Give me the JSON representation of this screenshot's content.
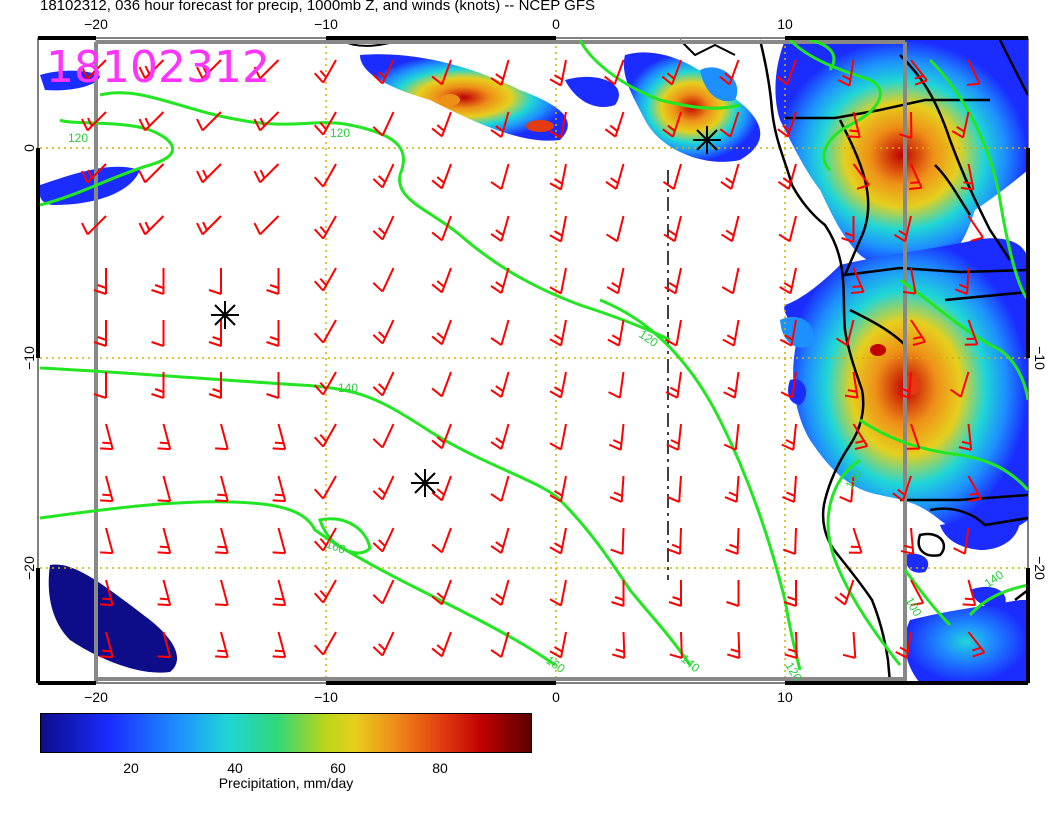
{
  "title": "18102312, 036 hour forecast for precip, 1000mb Z, and winds (knots) -- NCEP GFS",
  "stamp": "18102312",
  "map": {
    "x_ticks_top": [
      "−20",
      "−10",
      "0",
      "10"
    ],
    "x_ticks_bottom": [
      "−20",
      "−10",
      "0",
      "10"
    ],
    "y_ticks_left": [
      "0",
      "−10",
      "−20"
    ],
    "y_ticks_right": [
      "−10",
      "−20"
    ],
    "contour_labels": [
      "120",
      "120",
      "120",
      "140",
      "160",
      "160",
      "140",
      "120",
      "100",
      "140",
      "100"
    ]
  },
  "colorbar": {
    "ticks": [
      "20",
      "40",
      "60",
      "80"
    ],
    "label": "Precipitation, mm/day",
    "colors": [
      "#0d0d8a",
      "#1a2cff",
      "#1e8fff",
      "#1fd6d6",
      "#2fd77a",
      "#b9d61a",
      "#e6cf1d",
      "#ee8f18",
      "#e23b10",
      "#c00000",
      "#5a0000"
    ]
  },
  "style": {
    "barb_color": "#ff0000",
    "contour_color": "#22e622",
    "grid_color": "#d4b000",
    "label_color": "#ff33ff"
  }
}
